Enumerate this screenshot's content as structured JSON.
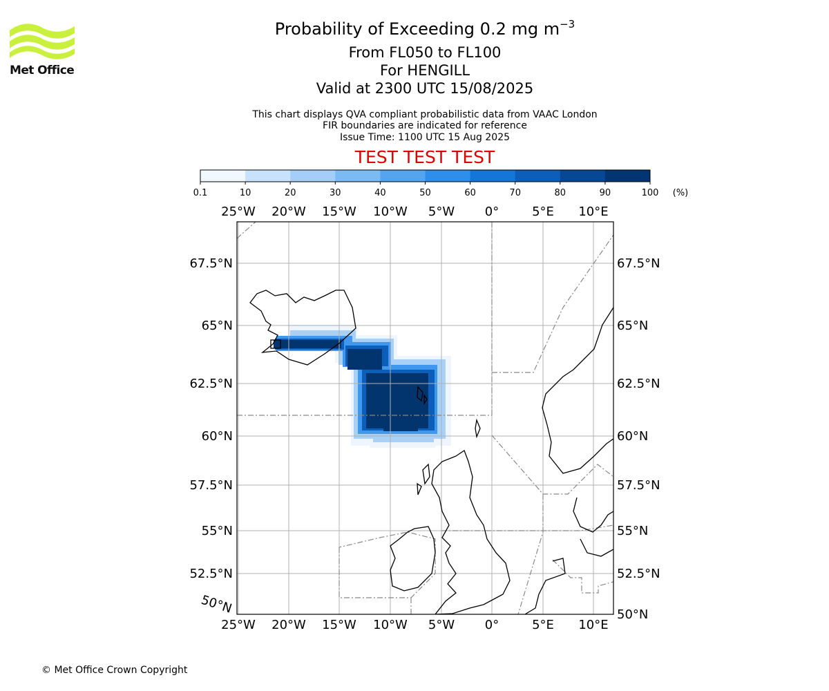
{
  "header": {
    "title_main": "Probability of Exceeding 0.2 mg m",
    "title_exponent": "−3",
    "flight_levels": "From FL050 to FL100",
    "location": "For HENGILL",
    "valid_time": "Valid at 2300 UTC 15/08/2025",
    "info_line_1": "This chart displays QVA compliant probabilistic data from VAAC London",
    "info_line_2": "FIR boundaries are indicated for reference",
    "info_line_3": "Issue Time: 1100 UTC 15 Aug 2025",
    "test_banner": "TEST TEST TEST"
  },
  "logo": {
    "text": "Met Office",
    "color": "#c8f03c"
  },
  "colorbar": {
    "ticks": [
      "0.1",
      "10",
      "20",
      "30",
      "40",
      "50",
      "60",
      "70",
      "80",
      "90",
      "100"
    ],
    "unit": "(%)",
    "colors": [
      "#f2f8ff",
      "#c8e2fb",
      "#a4cef7",
      "#7cbaf3",
      "#53a5f0",
      "#2d8eec",
      "#1576da",
      "#0b5fba",
      "#064896",
      "#023572"
    ]
  },
  "map": {
    "lon_labels": [
      "25°W",
      "20°W",
      "15°W",
      "10°W",
      "5°W",
      "0°",
      "5°E",
      "10°E"
    ],
    "lat_labels_left": [
      "67.5°N",
      "65°N",
      "62.5°N",
      "60°N",
      "57.5°N",
      "55°N",
      "52.5°N"
    ],
    "lat_labels_right": [
      "67.5°N",
      "65°N",
      "62.5°N",
      "60°N",
      "57.5°N",
      "55°N",
      "52.5°N",
      "50°N"
    ],
    "corner_label": "50°N",
    "plume": [
      {
        "lat": 64.2,
        "lon_w": 20.0,
        "lon_e": 14.0,
        "prob": 90
      },
      {
        "lat": 63.6,
        "lon_w": 14.0,
        "lon_e": 11.0,
        "prob": 90
      },
      {
        "lat": 62.5,
        "lon_w": 11.0,
        "lon_e": 8.0,
        "prob": 100
      },
      {
        "lat": 61.2,
        "lon_w": 10.0,
        "lon_e": 6.0,
        "prob": 100
      }
    ]
  },
  "footer": {
    "copyright": "© Met Office Crown Copyright"
  }
}
